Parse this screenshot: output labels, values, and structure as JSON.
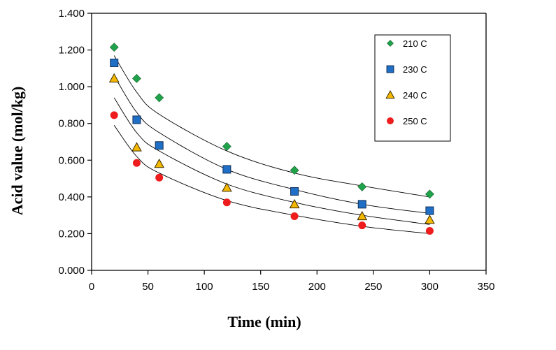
{
  "chart_data": {
    "type": "scatter",
    "xlabel": "Time (min)",
    "ylabel": "Acid value (mol/kg)",
    "xlim": [
      0,
      350
    ],
    "ylim": [
      0.0,
      1.4
    ],
    "xticks": [
      0,
      50,
      100,
      150,
      200,
      250,
      300,
      350
    ],
    "yticks": [
      0.0,
      0.2,
      0.4,
      0.6,
      0.8,
      1.0,
      1.2,
      1.4
    ],
    "xtick_labels": [
      "0",
      "50",
      "100",
      "150",
      "200",
      "250",
      "300",
      "350"
    ],
    "ytick_labels": [
      "0.000",
      "0.200",
      "0.400",
      "0.600",
      "0.800",
      "1.000",
      "1.200",
      "1.400"
    ],
    "grid": false,
    "legend_position": "top-right",
    "series": [
      {
        "name": "210 C",
        "marker": "diamond",
        "color": "#1ea34a",
        "x": [
          20,
          40,
          60,
          120,
          180,
          240,
          300
        ],
        "y": [
          1.215,
          1.045,
          0.94,
          0.675,
          0.545,
          0.455,
          0.415
        ],
        "fit_x": [
          20,
          40,
          60,
          120,
          180,
          240,
          300
        ],
        "fit_y": [
          1.17,
          0.97,
          0.85,
          0.65,
          0.53,
          0.46,
          0.4
        ]
      },
      {
        "name": "230 C",
        "marker": "square",
        "color": "#1f6fc6",
        "x": [
          20,
          40,
          60,
          120,
          180,
          240,
          300
        ],
        "y": [
          1.13,
          0.82,
          0.68,
          0.55,
          0.43,
          0.36,
          0.325
        ],
        "fit_x": [
          20,
          40,
          60,
          120,
          180,
          240,
          300
        ],
        "fit_y": [
          1.06,
          0.86,
          0.75,
          0.55,
          0.44,
          0.36,
          0.31
        ]
      },
      {
        "name": "240 C",
        "marker": "triangle",
        "color": "#f5b800",
        "x": [
          20,
          40,
          60,
          120,
          180,
          240,
          300
        ],
        "y": [
          1.045,
          0.67,
          0.58,
          0.45,
          0.36,
          0.295,
          0.275
        ],
        "fit_x": [
          20,
          40,
          60,
          120,
          180,
          240,
          300
        ],
        "fit_y": [
          0.94,
          0.75,
          0.65,
          0.47,
          0.37,
          0.3,
          0.25
        ]
      },
      {
        "name": "250 C",
        "marker": "circle",
        "color": "#ee1c1c",
        "x": [
          20,
          40,
          60,
          120,
          180,
          240,
          300
        ],
        "y": [
          0.845,
          0.585,
          0.505,
          0.37,
          0.295,
          0.245,
          0.215
        ],
        "fit_x": [
          20,
          40,
          60,
          120,
          180,
          240,
          300
        ],
        "fit_y": [
          0.79,
          0.62,
          0.53,
          0.38,
          0.3,
          0.24,
          0.2
        ]
      }
    ]
  }
}
